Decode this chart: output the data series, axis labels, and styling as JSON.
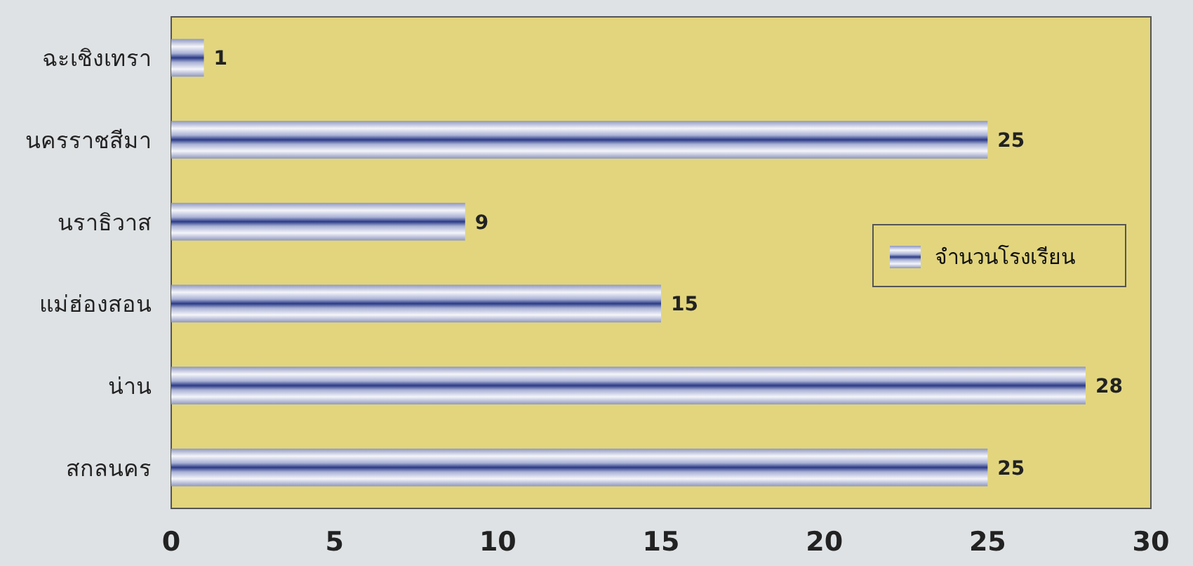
{
  "chart_data": {
    "type": "bar",
    "orientation": "horizontal",
    "categories": [
      "ฉะเชิงเทรา",
      "นครราชสีมา",
      "นราธิวาส",
      "แม่ฮ่องสอน",
      "น่าน",
      "สกลนคร"
    ],
    "series": [
      {
        "name": "จำนวนโรงเรียน",
        "color": "#2b3a86",
        "values": [
          1,
          25,
          9,
          15,
          28,
          25
        ]
      }
    ],
    "xlim": [
      0,
      30
    ],
    "xticks": [
      0,
      5,
      10,
      15,
      20,
      25,
      30
    ],
    "data_labels": true,
    "legend": "right"
  }
}
